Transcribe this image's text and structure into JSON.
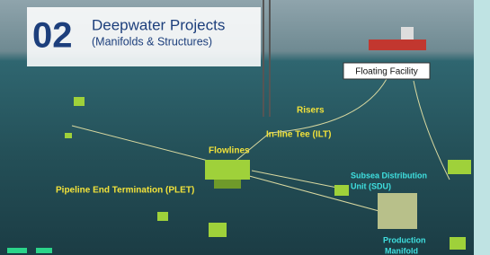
{
  "header": {
    "number": "02",
    "title": "Deepwater Projects",
    "subtitle": "(Manifolds & Structures)"
  },
  "labels": [
    {
      "lines": [
        "Floating Facility"
      ]
    },
    {
      "lines": [
        "Risers"
      ]
    },
    {
      "lines": [
        "In-line Tee (ILT)"
      ]
    },
    {
      "lines": [
        "Flowlines"
      ]
    },
    {
      "lines": [
        "Pipeline End Termination (PLET)"
      ]
    },
    {
      "lines": [
        "Subsea Distribution",
        "Unit (SDU)"
      ]
    },
    {
      "lines": [
        "Production",
        "Manifold"
      ]
    }
  ]
}
